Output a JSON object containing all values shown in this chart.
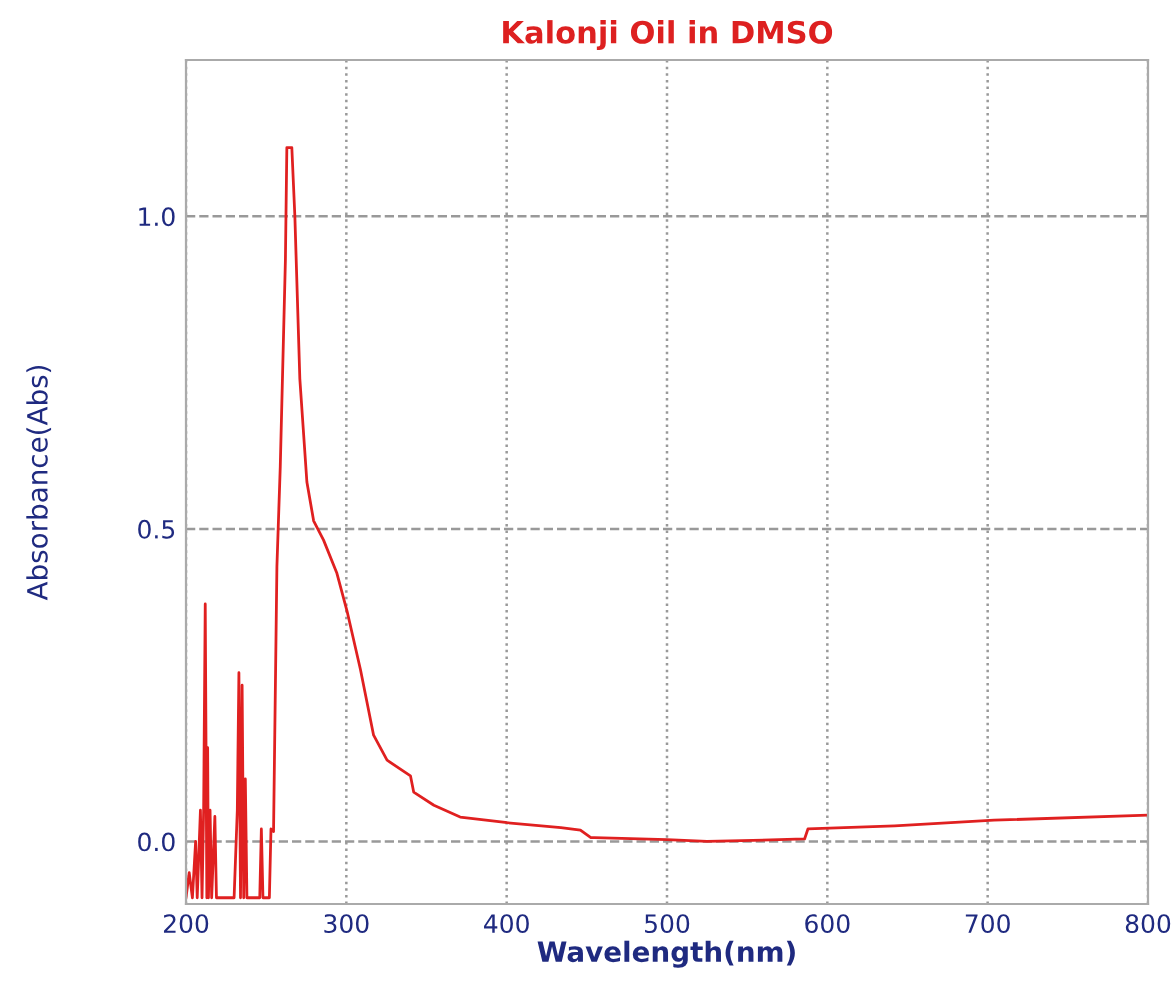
{
  "chart_data": {
    "type": "line",
    "title": "Kalonji Oil in DMSO",
    "xlabel": "Wavelength(nm)",
    "ylabel": "Absorbance(Abs)",
    "xlim": [
      200,
      800
    ],
    "ylim": [
      -0.1,
      1.25
    ],
    "xticks": [
      200,
      300,
      400,
      500,
      600,
      700,
      800
    ],
    "yticks": [
      {
        "value": 0,
        "label": "0.0"
      },
      {
        "value": 0.5,
        "label": "0.5"
      },
      {
        "value": 1.0,
        "label": "1.0"
      }
    ],
    "grid": true,
    "line_style": "solid",
    "marker": "none",
    "series": [
      {
        "color": "#e02020",
        "x": [
          200,
          202,
          204,
          206,
          207,
          209,
          210,
          211,
          212,
          213,
          213.5,
          214,
          215,
          216,
          218,
          219,
          222,
          230,
          232,
          233,
          234,
          235,
          236,
          237,
          238,
          246,
          247,
          248,
          252,
          253,
          254.6,
          256.7,
          258.8,
          262,
          262.9,
          266,
          267.9,
          271,
          275.4,
          279.6,
          285.8,
          294,
          300.4,
          308.8,
          317,
          325.4,
          340,
          342,
          354.6,
          371,
          400.4,
          433.8,
          446,
          452.5,
          454.6,
          500,
          525,
          585.8,
          587.9,
          642,
          704,
          800
        ],
        "values": [
          -0.09,
          -0.05,
          -0.09,
          0.0,
          -0.09,
          0.05,
          -0.09,
          0.05,
          0.38,
          -0.09,
          0.15,
          -0.09,
          0.05,
          -0.09,
          0.04,
          -0.09,
          -0.09,
          -0.09,
          0.05,
          0.27,
          -0.09,
          0.25,
          -0.09,
          0.1,
          -0.09,
          -0.09,
          0.02,
          -0.09,
          -0.09,
          0.02,
          0.016,
          0.44,
          0.6,
          0.93,
          1.11,
          1.11,
          1.0,
          0.74,
          0.575,
          0.513,
          0.482,
          0.43,
          0.369,
          0.275,
          0.17,
          0.13,
          0.105,
          0.079,
          0.058,
          0.039,
          0.03,
          0.022,
          0.018,
          0.006,
          0.006,
          0.003,
          0.0,
          0.004,
          0.02,
          0.025,
          0.034,
          0.042
        ]
      }
    ]
  }
}
